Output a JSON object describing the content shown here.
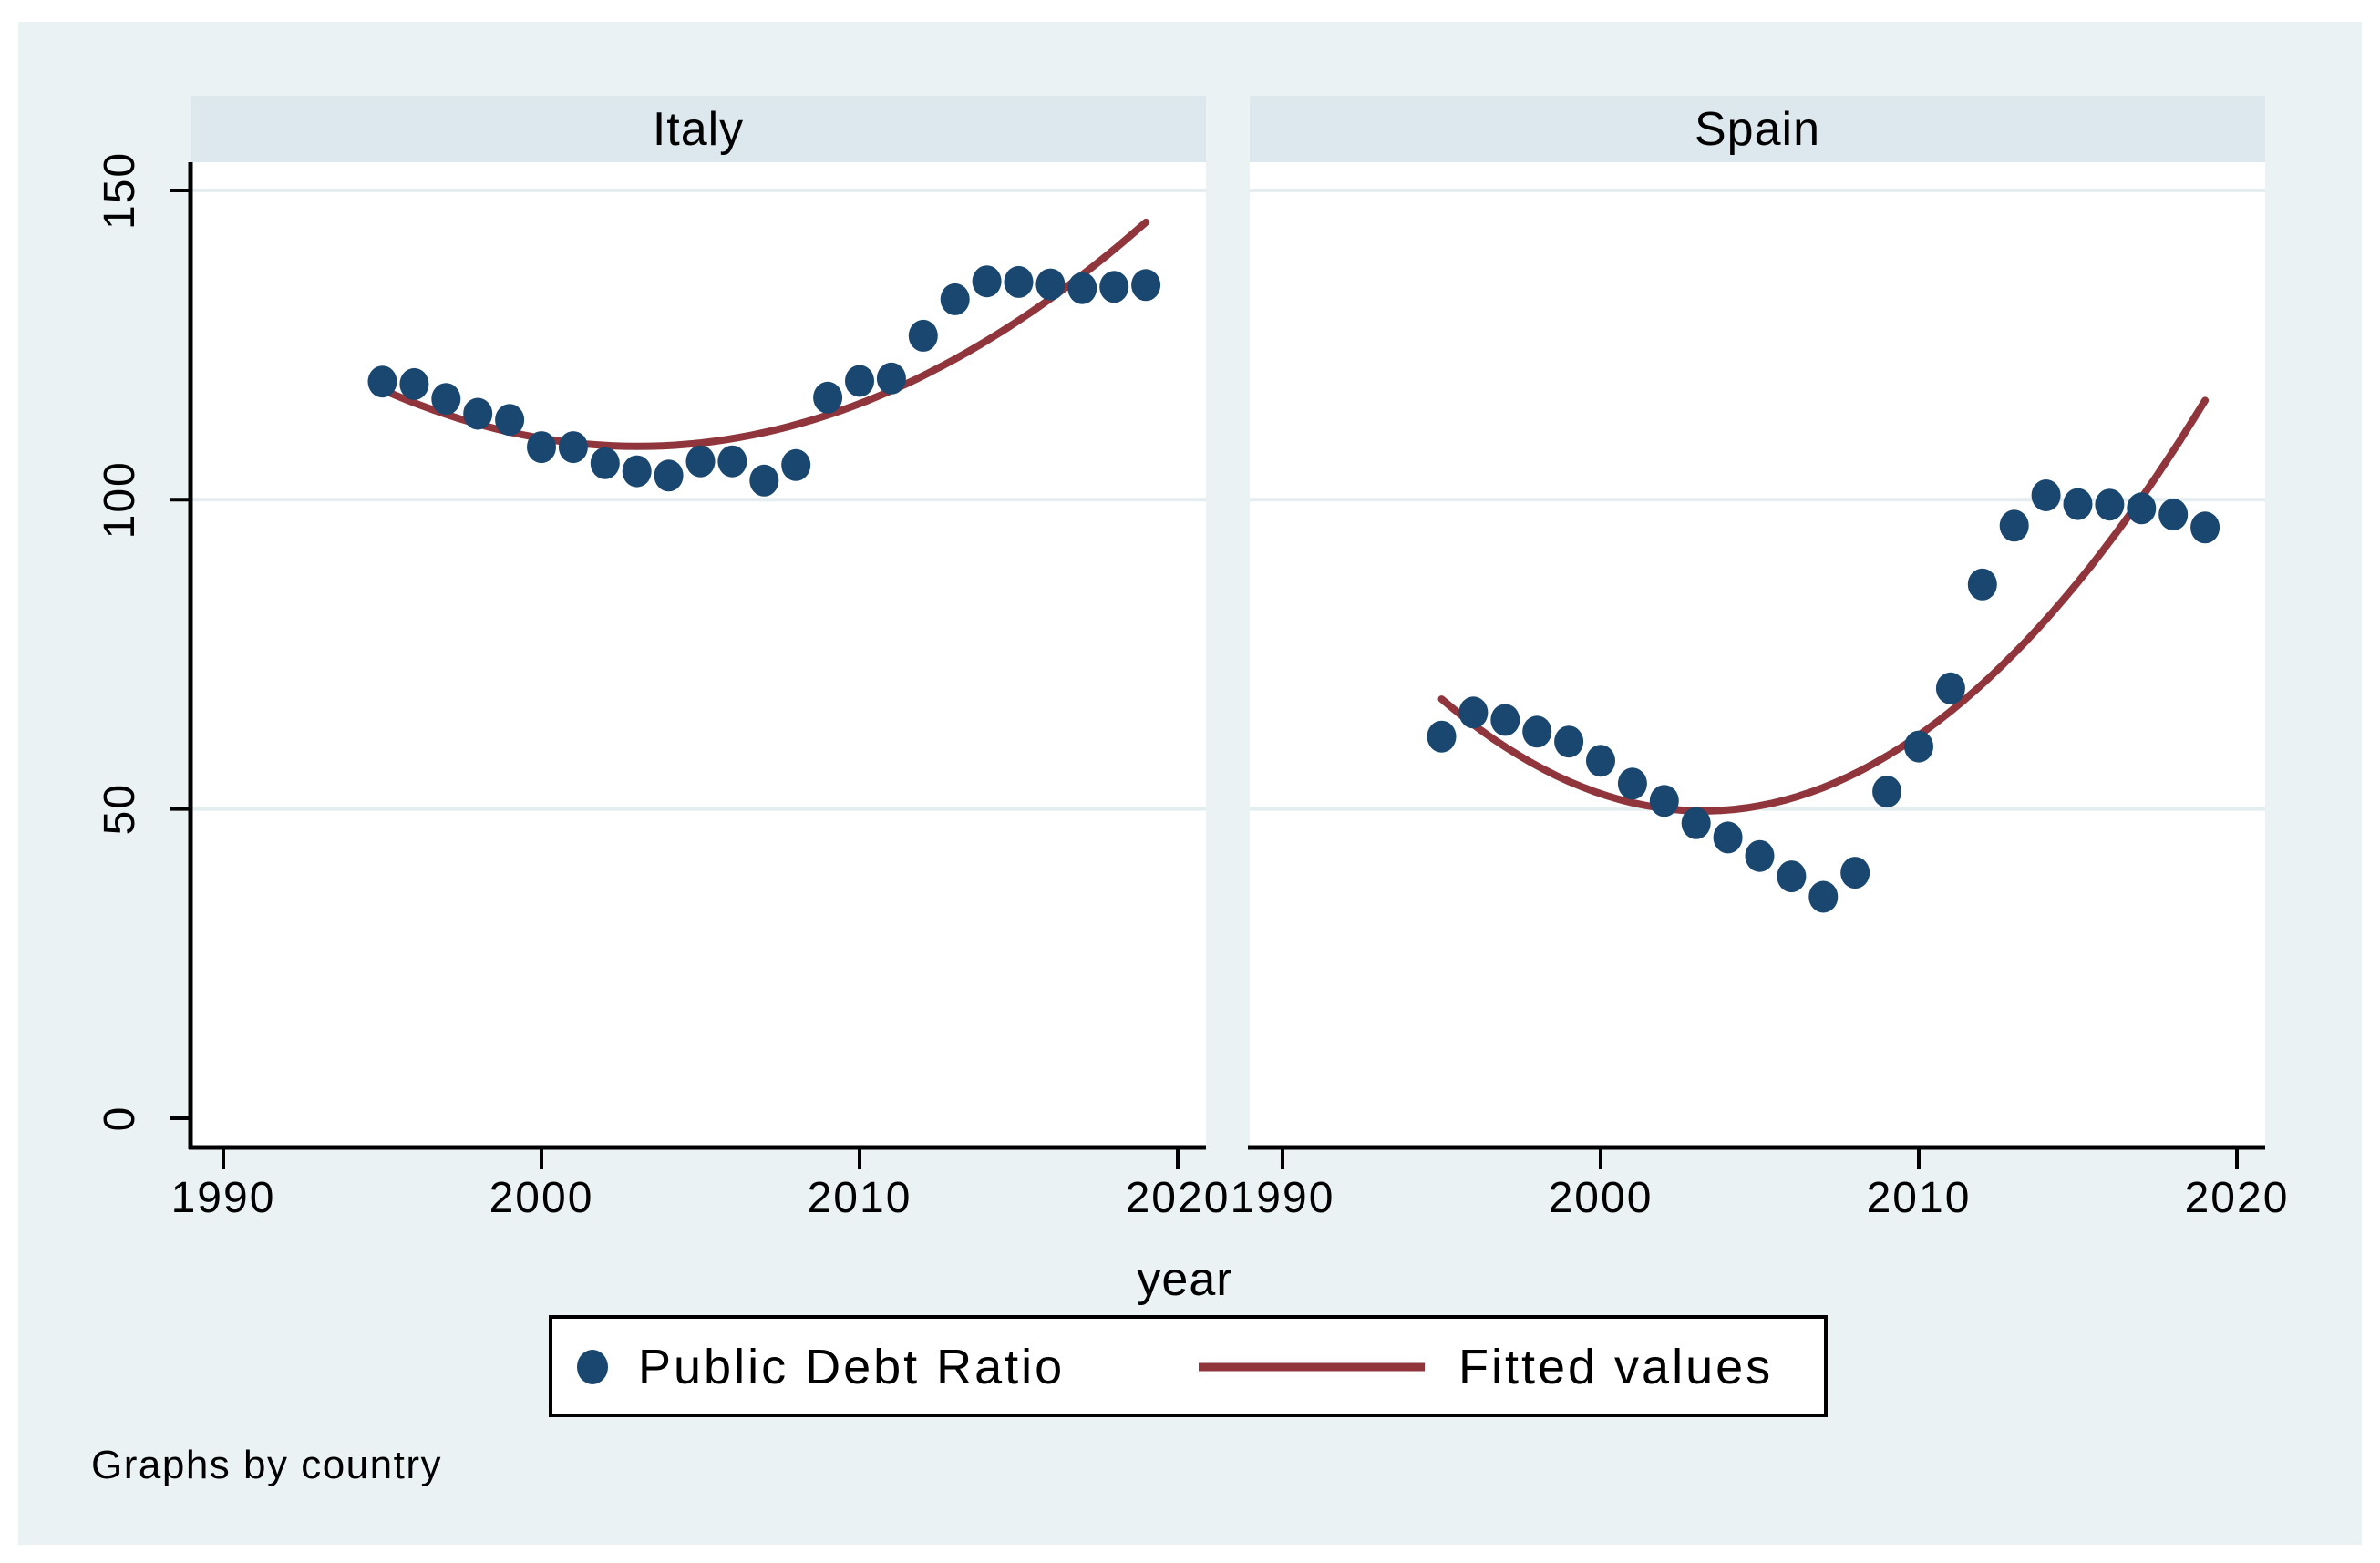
{
  "chart_data": {
    "type": "scatter",
    "title": "",
    "xlabel": "year",
    "x_ticks": [
      1990,
      2000,
      2010,
      2020
    ],
    "y_ticks": [
      0,
      50,
      100,
      150
    ],
    "xlim": [
      1988.9,
      2020.6
    ],
    "ylim": [
      0,
      154
    ],
    "grid": true,
    "fit": "quadratic",
    "panels": [
      {
        "title": "Italy",
        "series": {
          "name": "Public Debt Ratio",
          "x": [
            1995,
            1996,
            1997,
            1998,
            1999,
            2000,
            2001,
            2002,
            2003,
            2004,
            2005,
            2006,
            2007,
            2008,
            2009,
            2010,
            2011,
            2012,
            2013,
            2014,
            2015,
            2016,
            2017,
            2018,
            2019
          ],
          "y": [
            119.1,
            118.7,
            116.3,
            113.9,
            112.9,
            108.5,
            108.5,
            105.9,
            104.6,
            103.9,
            106.2,
            106.2,
            103.1,
            105.6,
            116.5,
            119.2,
            119.6,
            126.5,
            132.4,
            135.3,
            135.2,
            134.8,
            134.2,
            134.4,
            134.7
          ]
        }
      },
      {
        "title": "Spain",
        "series": {
          "name": "Public Debt Ratio",
          "x": [
            1995,
            1996,
            1997,
            1998,
            1999,
            2000,
            2001,
            2002,
            2003,
            2004,
            2005,
            2006,
            2007,
            2008,
            2009,
            2010,
            2011,
            2012,
            2013,
            2014,
            2015,
            2016,
            2017,
            2018,
            2019
          ],
          "y": [
            61.7,
            65.6,
            64.4,
            62.5,
            60.9,
            57.8,
            54.1,
            51.3,
            47.7,
            45.4,
            42.4,
            39.1,
            35.8,
            39.7,
            52.8,
            60.1,
            69.5,
            86.3,
            95.8,
            100.7,
            99.3,
            99.2,
            98.6,
            97.6,
            95.5
          ]
        }
      }
    ],
    "legend": [
      {
        "marker": "dot",
        "label": "Public Debt Ratio"
      },
      {
        "marker": "line",
        "label": "Fitted values"
      }
    ],
    "note": "Graphs by country"
  },
  "colors": {
    "background": "#eaf2f3",
    "banner": "#dce8ed",
    "plot_background": "#ffffff",
    "grid": "#e4eef1",
    "scatter": "#1a476f",
    "fit_line": "#90353b",
    "axis": "#000000",
    "legend_border": "#000000"
  }
}
